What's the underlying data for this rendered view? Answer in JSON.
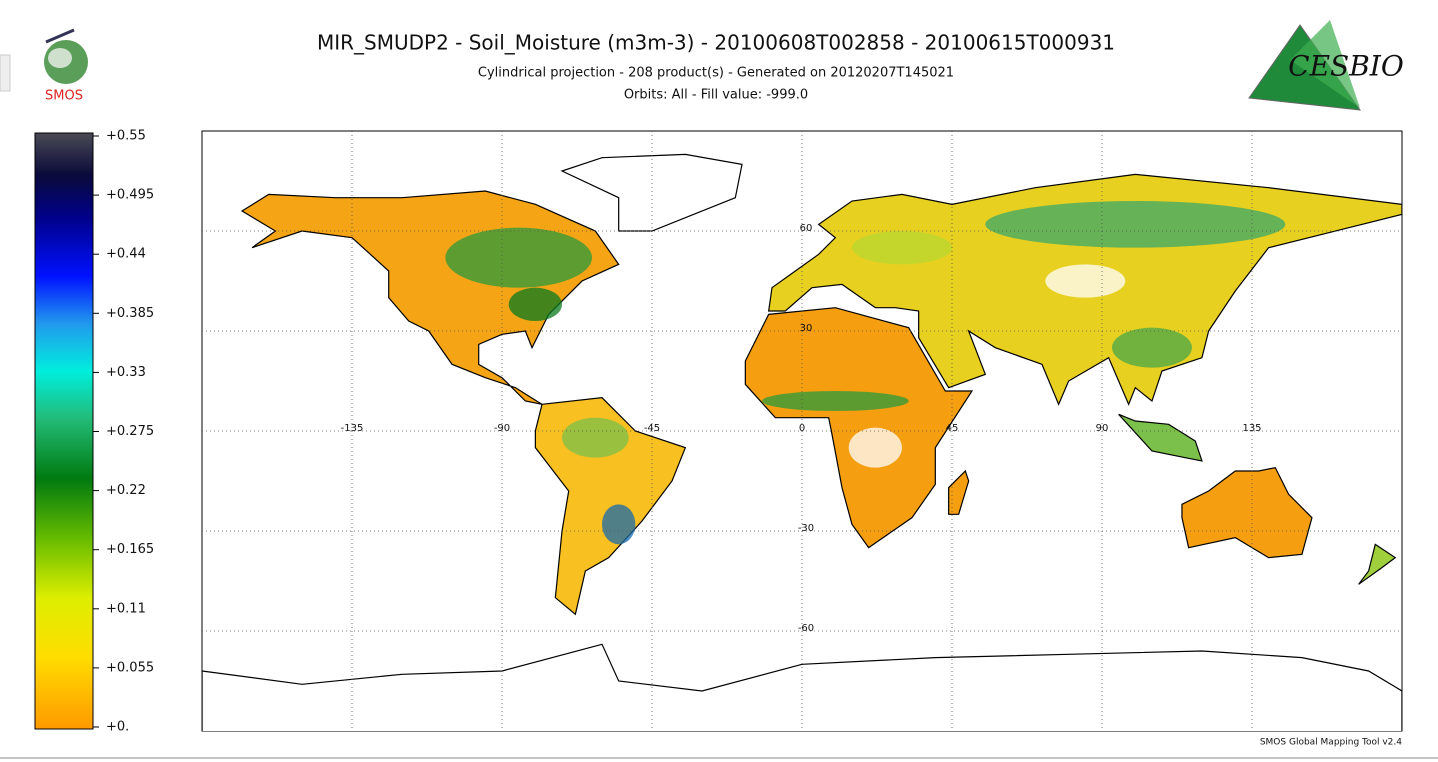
{
  "header": {
    "title": "MIR_SMUDP2 - Soil_Moisture (m3m-3) - 20100608T002858 - 20100615T000931",
    "subtitle": "Cylindrical projection - 208 product(s) - Generated on 20120207T145021",
    "subtitle2": "Orbits: All - Fill value: -999.0",
    "left_logo": "SMOS",
    "right_logo": "CESBIO"
  },
  "colorbar": {
    "ticks": [
      {
        "value": 0.55,
        "label": "+0.55"
      },
      {
        "value": 0.495,
        "label": "+0.495"
      },
      {
        "value": 0.44,
        "label": "+0.44"
      },
      {
        "value": 0.385,
        "label": "+0.385"
      },
      {
        "value": 0.33,
        "label": "+0.33"
      },
      {
        "value": 0.275,
        "label": "+0.275"
      },
      {
        "value": 0.22,
        "label": "+0.22"
      },
      {
        "value": 0.165,
        "label": "+0.165"
      },
      {
        "value": 0.11,
        "label": "+0.11"
      },
      {
        "value": 0.055,
        "label": "+0.055"
      },
      {
        "value": 0,
        "label": "+0."
      }
    ]
  },
  "map": {
    "lon_ticks": [
      -135,
      -90,
      -45,
      0,
      45,
      90,
      135
    ],
    "lat_ticks": [
      60,
      30,
      -30,
      -60
    ]
  },
  "footer": "SMOS Global Mapping Tool v2.4"
}
